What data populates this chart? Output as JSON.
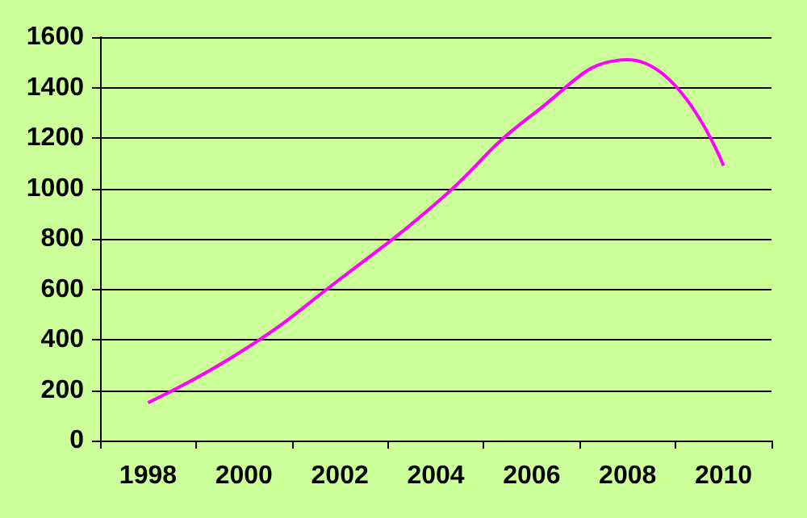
{
  "chart_data": {
    "type": "line",
    "categories": [
      "1998",
      "2000",
      "2002",
      "2004",
      "2006",
      "2008",
      "2010"
    ],
    "series": [
      {
        "color": "#ff00ff",
        "values": [
          150,
          360,
          640,
          940,
          1290,
          1510,
          1090
        ]
      }
    ],
    "ylim": [
      0,
      1600
    ],
    "yticks": [
      0,
      200,
      400,
      600,
      800,
      1000,
      1200,
      1400,
      1600
    ],
    "grid": "y",
    "marker": "none",
    "line_style": "solid"
  }
}
